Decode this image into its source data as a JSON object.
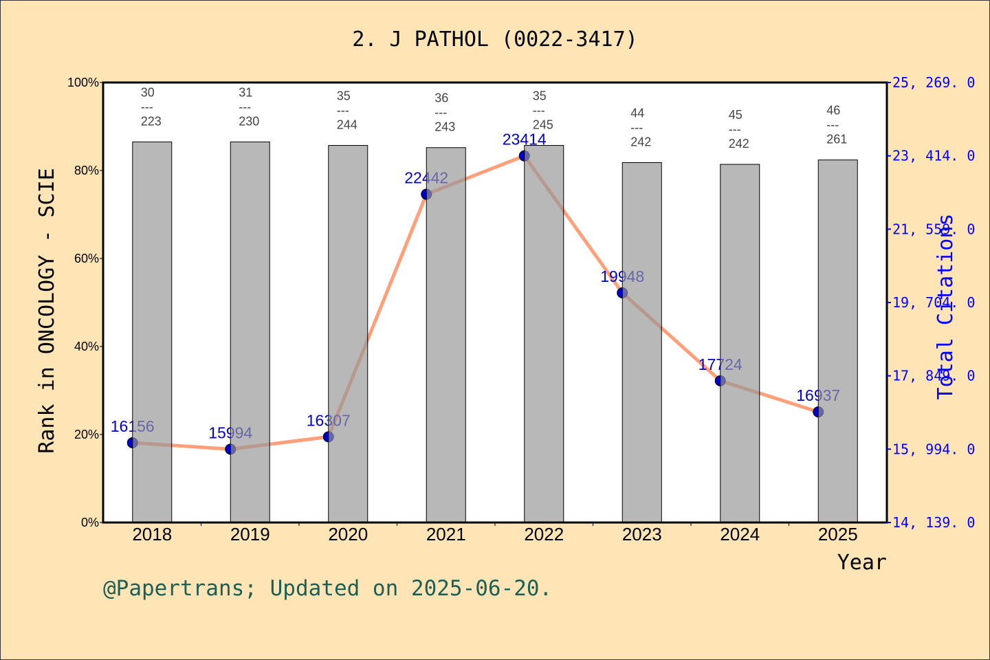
{
  "chart_data": {
    "type": "bar+line",
    "title": "2. J PATHOL (0022-3417)",
    "xlabel": "Year",
    "ylabel_left": "Rank in ONCOLOGY - SCIE",
    "ylabel_right": "Total Citations",
    "categories": [
      "2018",
      "2019",
      "2020",
      "2021",
      "2022",
      "2023",
      "2024",
      "2025"
    ],
    "rank": [
      30,
      31,
      35,
      36,
      35,
      44,
      45,
      46
    ],
    "total": [
      223,
      230,
      244,
      243,
      245,
      242,
      242,
      261
    ],
    "bar_percent": [
      86.5,
      86.5,
      85.7,
      85.2,
      85.7,
      81.8,
      81.4,
      82.4
    ],
    "citations": [
      16156,
      15994,
      16307,
      22442,
      23414,
      19948,
      17724,
      16937
    ],
    "left_ylim": [
      0,
      100
    ],
    "left_ticks": [
      "0%",
      "20%",
      "40%",
      "60%",
      "80%",
      "100%"
    ],
    "right_ylim": [
      14139,
      25269
    ],
    "right_ticks": [
      "14, 139. 0",
      "15, 994. 0",
      "17, 849. 0",
      "19, 704. 0",
      "21, 559. 0",
      "23, 414. 0",
      "25, 269. 0"
    ],
    "rank_separator": "---",
    "grid": false,
    "colors": {
      "bar": "#b8b8b8",
      "line": "#ffa07a",
      "marker": "#0000cd",
      "right_axis": "#0000ff",
      "background": "#ffe4b5",
      "footer": "#1e5f55"
    }
  },
  "footer": "@Papertrans; Updated on 2025-06-20."
}
